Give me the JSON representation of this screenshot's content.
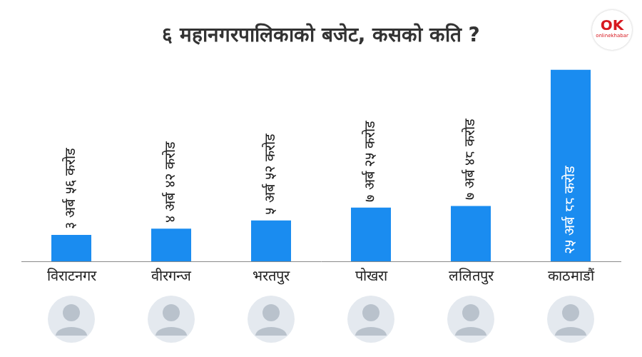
{
  "chart_data": {
    "type": "bar",
    "title": "६ महानगरपालिकाको बजेट, कसको कति ?",
    "categories": [
      "विराटनगर",
      "वीरगन्ज",
      "भरतपुर",
      "पोखरा",
      "ललितपुर",
      "काठमाडौं"
    ],
    "values": [
      356,
      442,
      552,
      725,
      748,
      2588
    ],
    "value_labels": [
      "३ अर्ब ५६ करोड",
      "४ अर्ब ४२ करोड",
      "५ अर्ब ५२ करोड",
      "७ अर्ब २५ करोड",
      "७ अर्ब ४८ करोड",
      "२५ अर्ब ८८ करोड"
    ],
    "color": "#1a8cf0",
    "ylim": [
      0,
      2588
    ],
    "grid": false,
    "data_labels": true,
    "tick_labels": "x",
    "logo": "OK",
    "source": "onlinekhabar"
  }
}
